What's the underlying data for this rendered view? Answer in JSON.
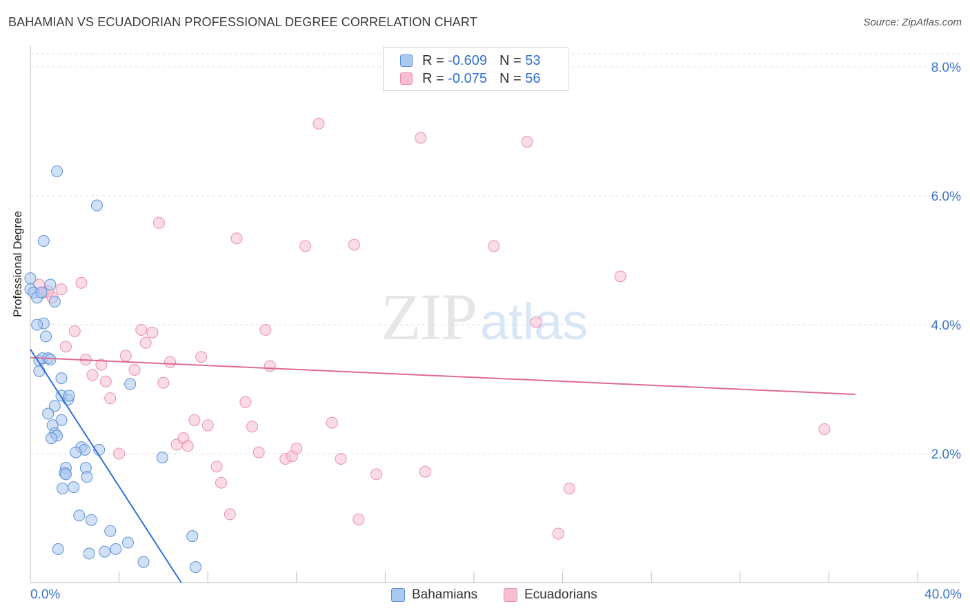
{
  "header": {
    "title": "BAHAMIAN VS ECUADORIAN PROFESSIONAL DEGREE CORRELATION CHART",
    "source": "Source: ZipAtlas.com"
  },
  "watermark": {
    "zip": "ZIP",
    "atlas": "atlas"
  },
  "legend_top": {
    "rows": [
      {
        "r_label": "R = ",
        "r_value": "-0.609",
        "n_label": "N = ",
        "n_value": "53"
      },
      {
        "r_label": "R = ",
        "r_value": "-0.075",
        "n_label": "N = ",
        "n_value": "56"
      }
    ]
  },
  "legend_bottom": {
    "items": [
      {
        "label": "Bahamians"
      },
      {
        "label": "Ecuadorians"
      }
    ]
  },
  "colors": {
    "bahamian_fill": "#aac8f0",
    "bahamian_stroke": "#5b8fd6",
    "bahamian_line": "#2f6fd6",
    "ecuadorian_fill": "#f7bdd0",
    "ecuadorian_stroke": "#e890ae",
    "ecuadorian_line": "#e06a93",
    "tick_label": "#3b73c9",
    "grid": "#e0e0e0"
  },
  "chart_data": {
    "type": "scatter",
    "title": "BAHAMIAN VS ECUADORIAN PROFESSIONAL DEGREE CORRELATION CHART",
    "xlabel": "",
    "ylabel": "Professional Degree",
    "xlim": [
      0,
      40
    ],
    "ylim": [
      0,
      8.0
    ],
    "x_tick_labels": [
      "0.0%",
      "40.0%"
    ],
    "y_ticks": [
      2,
      4,
      6,
      8
    ],
    "y_tick_labels": [
      "2.0%",
      "4.0%",
      "6.0%",
      "8.0%"
    ],
    "grid": "horizontal dashed",
    "legend_position": "top-center and bottom",
    "series": [
      {
        "name": "Bahamians",
        "r": -0.609,
        "n": 53,
        "trend": {
          "x": [
            0.0,
            6.8
          ],
          "y": [
            3.62,
            0.0
          ]
        },
        "points": [
          [
            0.0,
            4.72
          ],
          [
            0.0,
            4.55
          ],
          [
            0.15,
            4.5
          ],
          [
            0.3,
            4.42
          ],
          [
            0.6,
            4.02
          ],
          [
            0.3,
            4.0
          ],
          [
            0.7,
            3.82
          ],
          [
            0.4,
            3.44
          ],
          [
            0.55,
            3.48
          ],
          [
            0.8,
            3.48
          ],
          [
            0.4,
            3.28
          ],
          [
            1.1,
            4.36
          ],
          [
            1.2,
            6.38
          ],
          [
            0.6,
            5.3
          ],
          [
            0.9,
            4.62
          ],
          [
            1.4,
            3.17
          ],
          [
            1.4,
            2.9
          ],
          [
            1.7,
            2.84
          ],
          [
            1.75,
            2.9
          ],
          [
            1.1,
            2.74
          ],
          [
            0.8,
            2.62
          ],
          [
            1.4,
            2.52
          ],
          [
            1.0,
            2.44
          ],
          [
            1.1,
            2.32
          ],
          [
            1.2,
            2.28
          ],
          [
            0.95,
            2.24
          ],
          [
            2.3,
            2.1
          ],
          [
            2.45,
            2.06
          ],
          [
            3.1,
            2.06
          ],
          [
            2.05,
            2.02
          ],
          [
            1.6,
            1.78
          ],
          [
            1.55,
            1.7
          ],
          [
            1.6,
            1.68
          ],
          [
            2.5,
            1.78
          ],
          [
            2.55,
            1.64
          ],
          [
            1.45,
            1.46
          ],
          [
            1.95,
            1.48
          ],
          [
            2.2,
            1.04
          ],
          [
            2.75,
            0.97
          ],
          [
            3.6,
            0.8
          ],
          [
            1.25,
            0.52
          ],
          [
            2.65,
            0.45
          ],
          [
            3.35,
            0.48
          ],
          [
            3.85,
            0.52
          ],
          [
            4.4,
            0.62
          ],
          [
            5.1,
            0.32
          ],
          [
            3.0,
            5.85
          ],
          [
            4.5,
            3.08
          ],
          [
            5.95,
            1.94
          ],
          [
            7.3,
            0.72
          ],
          [
            7.45,
            0.24
          ],
          [
            0.9,
            3.46
          ],
          [
            0.5,
            4.5
          ]
        ]
      },
      {
        "name": "Ecuadorians",
        "r": -0.075,
        "n": 56,
        "trend": {
          "x": [
            0.0,
            37.2
          ],
          "y": [
            3.49,
            2.92
          ]
        },
        "points": [
          [
            0.4,
            4.62
          ],
          [
            0.6,
            4.5
          ],
          [
            1.0,
            4.42
          ],
          [
            1.4,
            4.55
          ],
          [
            2.3,
            4.65
          ],
          [
            0.8,
            4.52
          ],
          [
            1.6,
            3.66
          ],
          [
            2.0,
            3.9
          ],
          [
            2.5,
            3.46
          ],
          [
            2.8,
            3.22
          ],
          [
            3.2,
            3.38
          ],
          [
            3.4,
            3.12
          ],
          [
            3.6,
            2.86
          ],
          [
            4.0,
            2.0
          ],
          [
            4.3,
            3.52
          ],
          [
            4.7,
            3.3
          ],
          [
            5.0,
            3.92
          ],
          [
            5.2,
            3.72
          ],
          [
            5.5,
            3.88
          ],
          [
            5.8,
            5.58
          ],
          [
            6.0,
            3.1
          ],
          [
            6.3,
            3.42
          ],
          [
            6.6,
            2.14
          ],
          [
            6.9,
            2.24
          ],
          [
            7.1,
            2.12
          ],
          [
            7.4,
            2.52
          ],
          [
            7.7,
            3.5
          ],
          [
            8.0,
            2.44
          ],
          [
            8.4,
            1.8
          ],
          [
            8.6,
            1.55
          ],
          [
            9.0,
            1.06
          ],
          [
            9.3,
            5.34
          ],
          [
            9.7,
            2.8
          ],
          [
            10.0,
            2.42
          ],
          [
            10.3,
            2.02
          ],
          [
            10.6,
            3.92
          ],
          [
            10.8,
            3.36
          ],
          [
            11.5,
            1.92
          ],
          [
            11.8,
            1.96
          ],
          [
            12.0,
            2.08
          ],
          [
            12.4,
            5.22
          ],
          [
            13.0,
            7.12
          ],
          [
            13.6,
            2.48
          ],
          [
            14.0,
            1.92
          ],
          [
            14.6,
            5.24
          ],
          [
            14.8,
            0.98
          ],
          [
            15.6,
            1.68
          ],
          [
            17.6,
            6.9
          ],
          [
            17.8,
            1.72
          ],
          [
            20.9,
            5.22
          ],
          [
            22.4,
            6.84
          ],
          [
            22.8,
            4.04
          ],
          [
            23.8,
            0.76
          ],
          [
            24.3,
            1.46
          ],
          [
            26.6,
            4.75
          ],
          [
            35.8,
            2.38
          ]
        ]
      }
    ]
  }
}
